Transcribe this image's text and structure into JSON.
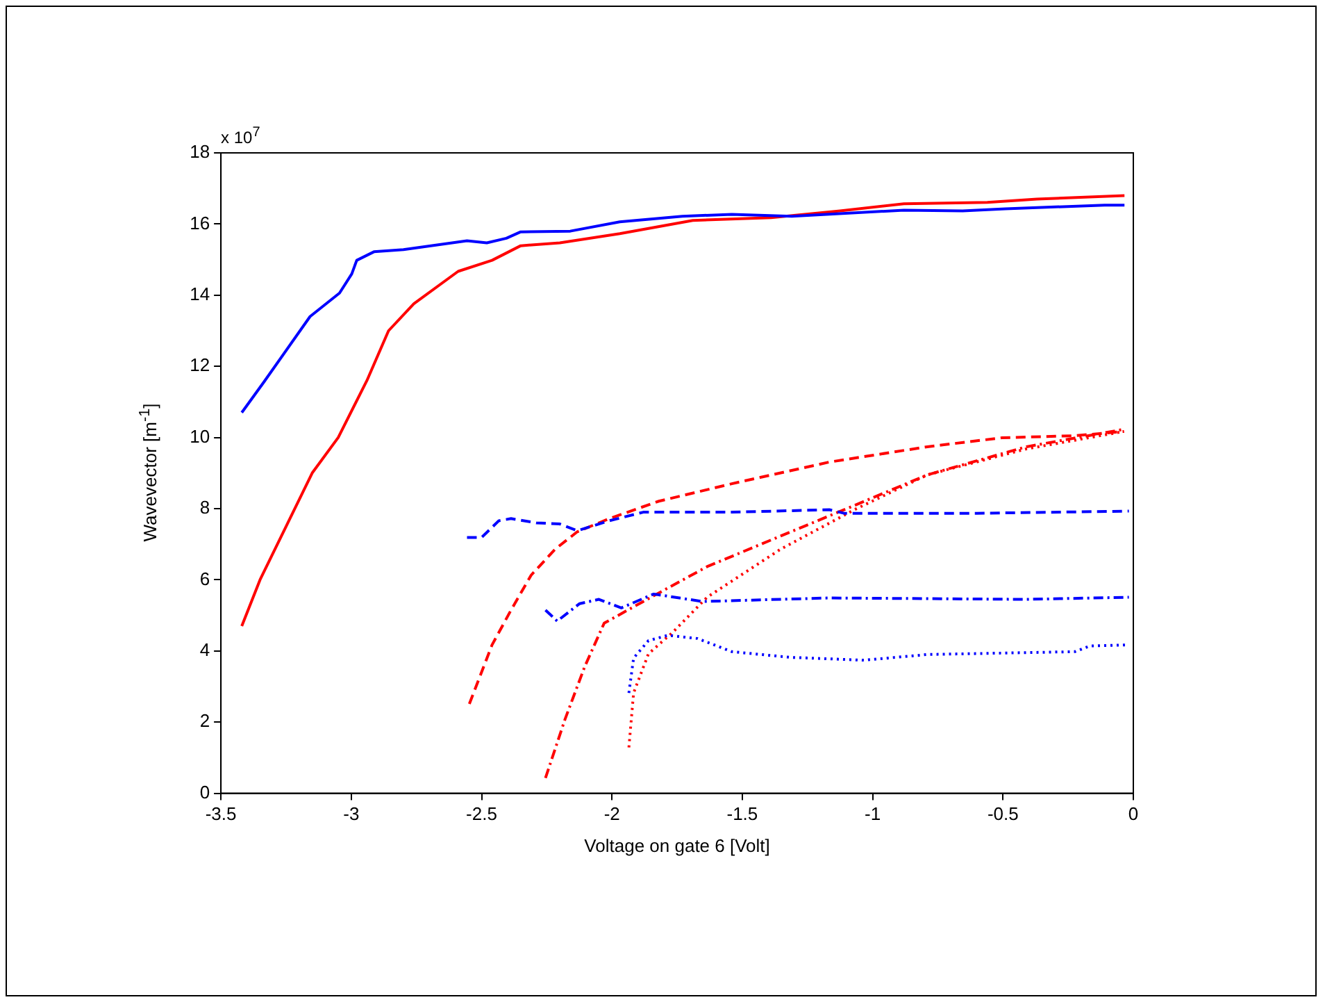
{
  "chart_data": {
    "type": "line",
    "xlabel": "Voltage on gate 6 [Volt]",
    "ylabel": "Wavevector [m$^{-1}$]",
    "annotations": [
      "x 10$^{7}$"
    ],
    "xlim": [
      -3.5,
      0
    ],
    "xticks": [
      -3.5,
      -3,
      -2.5,
      -2,
      -1.5,
      -1,
      -0.5,
      0
    ],
    "ylim": [
      0,
      18
    ],
    "yticks": [
      0,
      2,
      4,
      6,
      8,
      10,
      12,
      14,
      16,
      18
    ],
    "grid": false,
    "legend": false,
    "marker": "none",
    "series": [
      {
        "color": "#0000ff",
        "line_style": "solid",
        "x": [
          -3.42,
          -3.336,
          -3.158,
          -3.045,
          -2.998,
          -2.979,
          -2.913,
          -2.8,
          -2.556,
          -2.48,
          -2.405,
          -2.35,
          -2.16,
          -1.97,
          -1.73,
          -1.54,
          -1.31,
          -0.88,
          -0.655,
          -0.49,
          -0.11,
          -0.034
        ],
        "values": [
          10.7,
          11.55,
          13.4,
          14.06,
          14.6,
          14.98,
          15.22,
          15.28,
          15.53,
          15.47,
          15.6,
          15.78,
          15.8,
          16.06,
          16.22,
          16.27,
          16.22,
          16.39,
          16.37,
          16.43,
          16.53,
          16.53
        ]
      },
      {
        "color": "#ff0000",
        "line_style": "solid",
        "x": [
          -3.42,
          -3.35,
          -3.25,
          -3.15,
          -3.05,
          -2.94,
          -2.857,
          -2.76,
          -2.59,
          -2.46,
          -2.35,
          -2.2,
          -1.97,
          -1.69,
          -1.39,
          -1.125,
          -0.88,
          -0.56,
          -0.37,
          -0.034
        ],
        "values": [
          4.7,
          6.0,
          7.5,
          9.0,
          10.0,
          11.6,
          13.0,
          13.76,
          14.67,
          14.98,
          15.39,
          15.47,
          15.73,
          16.1,
          16.18,
          16.37,
          16.57,
          16.61,
          16.7,
          16.8
        ]
      },
      {
        "color": "#0000ff",
        "line_style": "dashed",
        "x": [
          -2.556,
          -2.5,
          -2.434,
          -2.387,
          -2.29,
          -2.2,
          -2.133,
          -2.01,
          -1.88,
          -1.54,
          -1.166,
          -1.11,
          -0.6,
          -0.017
        ],
        "values": [
          7.19,
          7.19,
          7.66,
          7.72,
          7.6,
          7.57,
          7.38,
          7.66,
          7.9,
          7.9,
          7.97,
          7.87,
          7.87,
          7.93
        ]
      },
      {
        "color": "#ff0000",
        "line_style": "dashed",
        "x": [
          -2.547,
          -2.46,
          -2.387,
          -2.31,
          -2.218,
          -2.133,
          -2.01,
          -1.82,
          -1.54,
          -1.166,
          -0.79,
          -0.506,
          -0.224,
          -0.036
        ],
        "values": [
          2.51,
          4.17,
          5.15,
          6.13,
          6.86,
          7.35,
          7.72,
          8.21,
          8.7,
          9.31,
          9.74,
          9.99,
          10.05,
          10.17
        ]
      },
      {
        "color": "#0000ff",
        "line_style": "dashdot",
        "x": [
          -2.255,
          -2.21,
          -2.124,
          -2.05,
          -1.964,
          -1.84,
          -1.653,
          -1.166,
          -0.41,
          -0.017
        ],
        "values": [
          5.15,
          4.84,
          5.33,
          5.45,
          5.21,
          5.6,
          5.39,
          5.49,
          5.45,
          5.51
        ]
      },
      {
        "color": "#ff0000",
        "line_style": "dashdot",
        "x": [
          -2.255,
          -2.18,
          -2.105,
          -2.03,
          -1.88,
          -1.635,
          -1.353,
          -1.07,
          -0.79,
          -0.41,
          -0.036
        ],
        "values": [
          0.43,
          2.08,
          3.55,
          4.78,
          5.39,
          6.37,
          7.23,
          8.09,
          8.95,
          9.74,
          10.23
        ]
      },
      {
        "color": "#0000ff",
        "line_style": "dotted",
        "x": [
          -1.935,
          -1.917,
          -1.86,
          -1.785,
          -1.672,
          -1.54,
          -1.315,
          -1.033,
          -0.79,
          -0.224,
          -0.167,
          -0.017
        ],
        "values": [
          2.82,
          3.8,
          4.29,
          4.44,
          4.35,
          3.98,
          3.82,
          3.74,
          3.9,
          3.98,
          4.14,
          4.17
        ]
      },
      {
        "color": "#ff0000",
        "line_style": "dotted",
        "x": [
          -1.935,
          -1.917,
          -1.86,
          -1.766,
          -1.635,
          -1.353,
          -1.07,
          -0.79,
          -0.41,
          -0.036
        ],
        "values": [
          1.29,
          2.82,
          3.92,
          4.53,
          5.51,
          6.86,
          7.97,
          8.95,
          9.68,
          10.17
        ]
      }
    ]
  }
}
